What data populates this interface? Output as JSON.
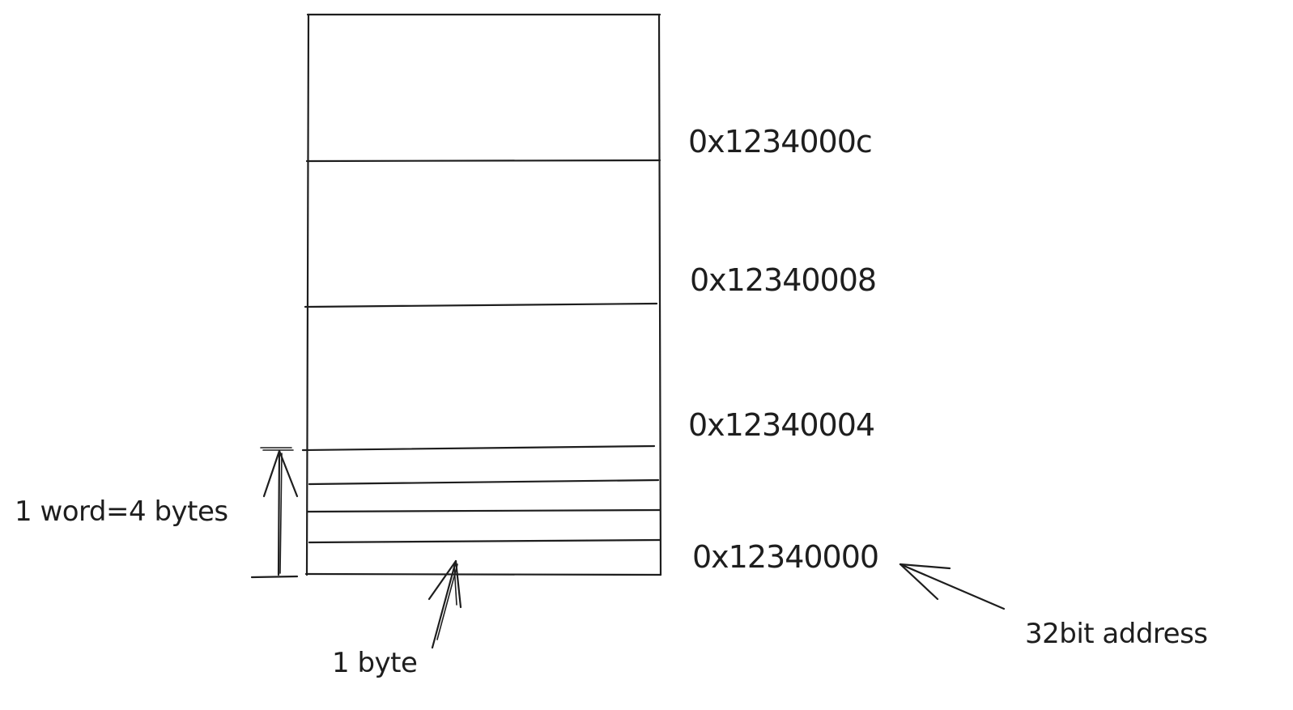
{
  "memory_diagram": {
    "addresses": [
      "0x1234000c",
      "0x12340008",
      "0x12340004",
      "0x12340000"
    ],
    "word_label": "1 word=4 bytes",
    "byte_label": "1 byte",
    "address_label": "32bit address"
  }
}
